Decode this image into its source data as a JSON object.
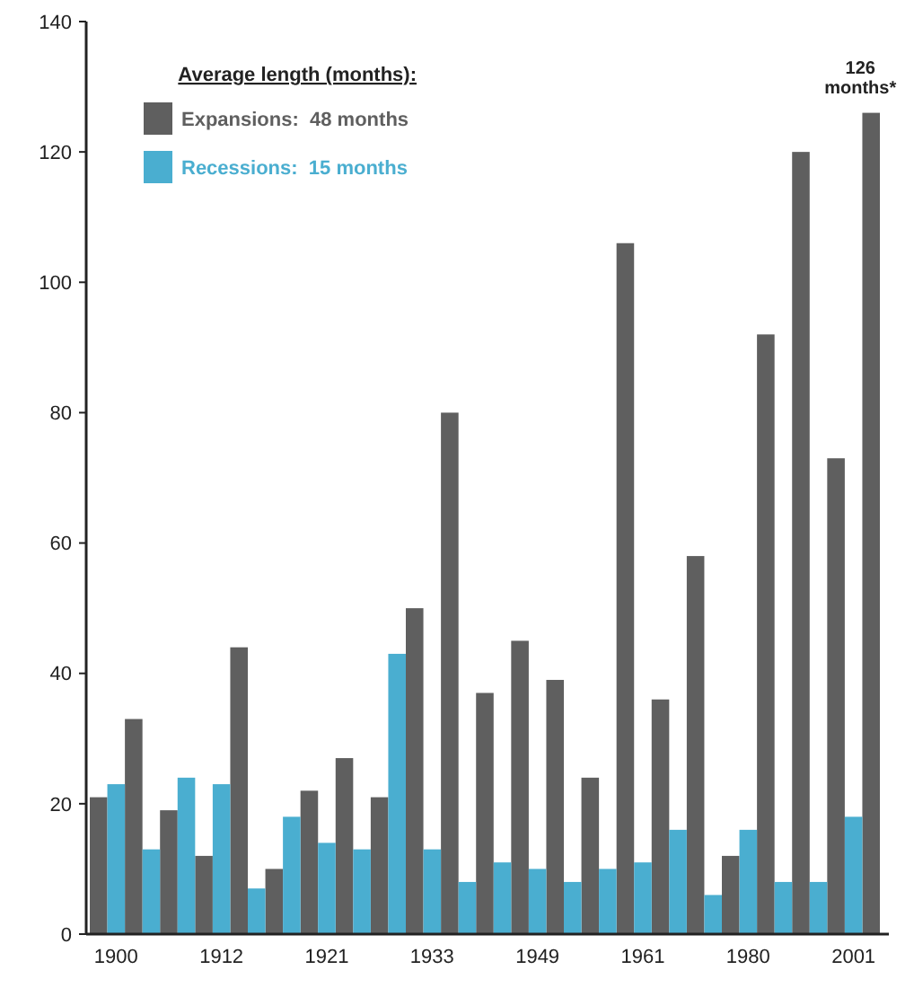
{
  "chart_data": {
    "type": "bar",
    "stacked": true,
    "categories": [
      null,
      "1900",
      null,
      null,
      null,
      null,
      null,
      "1912",
      null,
      null,
      null,
      null,
      null,
      "1921",
      null,
      null,
      null,
      null,
      null,
      "1933",
      null,
      null,
      null,
      null,
      null,
      "1949",
      null,
      null,
      null,
      null,
      null,
      "1961",
      null,
      null,
      null,
      null,
      null,
      "1980",
      null,
      null,
      null,
      null,
      null,
      "2001",
      null
    ],
    "series": [
      {
        "name": "Expansions:  48 months",
        "color": "#5f5f5f",
        "values": [
          21,
          null,
          33,
          null,
          19,
          null,
          12,
          null,
          44,
          null,
          10,
          null,
          22,
          null,
          27,
          null,
          21,
          null,
          50,
          null,
          80,
          null,
          37,
          null,
          45,
          null,
          39,
          null,
          24,
          null,
          106,
          null,
          36,
          null,
          58,
          null,
          12,
          null,
          92,
          null,
          120,
          null,
          73,
          null,
          126
        ]
      },
      {
        "name": "Recessions:  15 months",
        "color": "#4aaed0",
        "values": [
          null,
          23,
          null,
          13,
          null,
          24,
          null,
          23,
          null,
          7,
          null,
          18,
          null,
          14,
          null,
          13,
          null,
          43,
          null,
          13,
          null,
          8,
          null,
          11,
          null,
          10,
          null,
          8,
          null,
          10,
          null,
          11,
          null,
          16,
          null,
          6,
          null,
          16,
          null,
          8,
          null,
          8,
          null,
          18,
          null
        ]
      }
    ],
    "legend_title": "Average length (months):",
    "legend": "top left",
    "annotations": [
      {
        "text": "126 months*",
        "y": 126
      }
    ],
    "ylim": [
      0,
      140
    ],
    "yticks": [
      0,
      20,
      40,
      60,
      80,
      100,
      120,
      140
    ],
    "grid": false
  }
}
